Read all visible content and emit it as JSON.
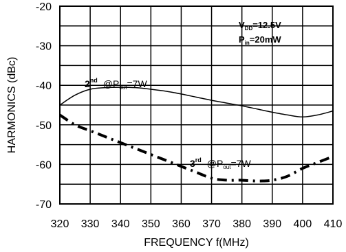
{
  "chart_data": {
    "type": "line",
    "xlabel": "FREQUENCY f(MHz)",
    "ylabel": "HARMONICS (dBc)",
    "xlim": [
      320,
      410
    ],
    "ylim": [
      -70,
      -20
    ],
    "xticks": [
      "320",
      "330",
      "340",
      "350",
      "360",
      "370",
      "380",
      "390",
      "400",
      "410"
    ],
    "yticks": [
      "-20",
      "-30",
      "-40",
      "-50",
      "-60",
      "-70"
    ],
    "grid": true,
    "series": [
      {
        "name": "2nd @Pout=7W",
        "style": "solid",
        "x": [
          320,
          325,
          330,
          335,
          340,
          345,
          350,
          355,
          360,
          365,
          370,
          375,
          380,
          385,
          390,
          395,
          400,
          405,
          410
        ],
        "y": [
          -45,
          -42.5,
          -41,
          -40.6,
          -40.5,
          -40.6,
          -41,
          -41.5,
          -42.2,
          -43,
          -43.8,
          -44.5,
          -45.2,
          -46,
          -46.8,
          -47.5,
          -48,
          -47.5,
          -46.5
        ]
      },
      {
        "name": "3rd @Pout=7W",
        "style": "dashed",
        "x": [
          320,
          325,
          330,
          335,
          340,
          345,
          350,
          355,
          360,
          365,
          370,
          375,
          380,
          385,
          390,
          395,
          400,
          405,
          410
        ],
        "y": [
          -47.5,
          -50,
          -51.5,
          -53,
          -54.5,
          -56,
          -57.5,
          -59,
          -60.5,
          -62,
          -63.5,
          -64,
          -64,
          -64.2,
          -64,
          -63,
          -61,
          -59.5,
          -58
        ]
      }
    ],
    "annotations": {
      "vdd": {
        "main": "V",
        "sub": "DD",
        "tail": "=12.5V"
      },
      "pin": {
        "main": "P",
        "sub": "in",
        "tail": "=20mW"
      },
      "second": {
        "num": "2",
        "sup": "nd",
        "pre": "@P",
        "sub": "out",
        "tail": "=7W"
      },
      "third": {
        "num": "3",
        "sup": "rd",
        "pre": "@P",
        "sub": "out",
        "tail": "=7W"
      }
    }
  }
}
